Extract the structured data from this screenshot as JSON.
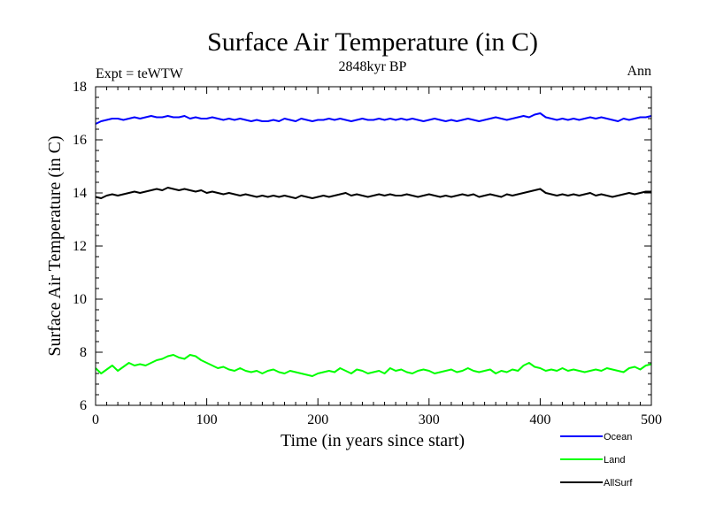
{
  "chart_data": {
    "type": "line",
    "title": "Surface Air Temperature (in C)",
    "subtitle": "2848kyr BP",
    "annotation_left": "Expt = teWTW",
    "annotation_right": "Ann",
    "xlabel": "Time (in years since start)",
    "ylabel": "Surface Air Temperature (in C)",
    "xlim": [
      0,
      500
    ],
    "ylim": [
      6,
      18
    ],
    "xticks": [
      0,
      100,
      200,
      300,
      400,
      500
    ],
    "xtick_labels": [
      "0",
      "100",
      "200",
      "300",
      "400",
      "500"
    ],
    "yticks": [
      6,
      8,
      10,
      12,
      14,
      16,
      18
    ],
    "ytick_labels": [
      "6",
      "8",
      "10",
      "12",
      "14",
      "16",
      "18"
    ],
    "legend_position": "bottom-right, below plot",
    "series": [
      {
        "name": "Ocean",
        "color": "#0000ff",
        "x_start": 0,
        "x_step": 5,
        "values": [
          16.6,
          16.7,
          16.75,
          16.8,
          16.8,
          16.75,
          16.8,
          16.85,
          16.8,
          16.85,
          16.9,
          16.85,
          16.85,
          16.9,
          16.85,
          16.85,
          16.9,
          16.8,
          16.85,
          16.8,
          16.8,
          16.85,
          16.8,
          16.75,
          16.8,
          16.75,
          16.8,
          16.75,
          16.7,
          16.75,
          16.7,
          16.7,
          16.75,
          16.7,
          16.8,
          16.75,
          16.7,
          16.8,
          16.75,
          16.7,
          16.75,
          16.75,
          16.8,
          16.75,
          16.8,
          16.75,
          16.7,
          16.75,
          16.8,
          16.75,
          16.75,
          16.8,
          16.75,
          16.8,
          16.75,
          16.8,
          16.75,
          16.8,
          16.75,
          16.7,
          16.75,
          16.8,
          16.75,
          16.7,
          16.75,
          16.7,
          16.75,
          16.8,
          16.75,
          16.7,
          16.75,
          16.8,
          16.85,
          16.8,
          16.75,
          16.8,
          16.85,
          16.9,
          16.85,
          16.95,
          17.0,
          16.85,
          16.8,
          16.75,
          16.8,
          16.75,
          16.8,
          16.75,
          16.8,
          16.85,
          16.8,
          16.85,
          16.8,
          16.75,
          16.7,
          16.8,
          16.75,
          16.8,
          16.85,
          16.85,
          16.9
        ]
      },
      {
        "name": "Land",
        "color": "#00ff00",
        "x_start": 0,
        "x_step": 5,
        "values": [
          7.4,
          7.2,
          7.35,
          7.5,
          7.3,
          7.45,
          7.6,
          7.5,
          7.55,
          7.5,
          7.6,
          7.7,
          7.75,
          7.85,
          7.9,
          7.8,
          7.75,
          7.9,
          7.85,
          7.7,
          7.6,
          7.5,
          7.4,
          7.45,
          7.35,
          7.3,
          7.4,
          7.3,
          7.25,
          7.3,
          7.2,
          7.3,
          7.35,
          7.25,
          7.2,
          7.3,
          7.25,
          7.2,
          7.15,
          7.1,
          7.2,
          7.25,
          7.3,
          7.25,
          7.4,
          7.3,
          7.2,
          7.35,
          7.3,
          7.2,
          7.25,
          7.3,
          7.2,
          7.4,
          7.3,
          7.35,
          7.25,
          7.2,
          7.3,
          7.35,
          7.3,
          7.2,
          7.25,
          7.3,
          7.35,
          7.25,
          7.3,
          7.4,
          7.3,
          7.25,
          7.3,
          7.35,
          7.2,
          7.3,
          7.25,
          7.35,
          7.3,
          7.5,
          7.6,
          7.45,
          7.4,
          7.3,
          7.35,
          7.3,
          7.4,
          7.3,
          7.35,
          7.3,
          7.25,
          7.3,
          7.35,
          7.3,
          7.4,
          7.35,
          7.3,
          7.25,
          7.4,
          7.45,
          7.35,
          7.5,
          7.55
        ]
      },
      {
        "name": "AllSurf",
        "color": "#000000",
        "x_start": 0,
        "x_step": 5,
        "values": [
          13.85,
          13.8,
          13.9,
          13.95,
          13.9,
          13.95,
          14.0,
          14.05,
          14.0,
          14.05,
          14.1,
          14.15,
          14.1,
          14.2,
          14.15,
          14.1,
          14.15,
          14.1,
          14.05,
          14.1,
          14.0,
          14.05,
          14.0,
          13.95,
          14.0,
          13.95,
          13.9,
          13.95,
          13.9,
          13.85,
          13.9,
          13.85,
          13.9,
          13.85,
          13.9,
          13.85,
          13.8,
          13.9,
          13.85,
          13.8,
          13.85,
          13.9,
          13.85,
          13.9,
          13.95,
          14.0,
          13.9,
          13.95,
          13.9,
          13.85,
          13.9,
          13.95,
          13.9,
          13.95,
          13.9,
          13.9,
          13.95,
          13.9,
          13.85,
          13.9,
          13.95,
          13.9,
          13.85,
          13.9,
          13.85,
          13.9,
          13.95,
          13.9,
          13.95,
          13.85,
          13.9,
          13.95,
          13.9,
          13.85,
          13.95,
          13.9,
          13.95,
          14.0,
          14.05,
          14.1,
          14.15,
          14.0,
          13.95,
          13.9,
          13.95,
          13.9,
          13.95,
          13.9,
          13.95,
          14.0,
          13.9,
          13.95,
          13.9,
          13.85,
          13.9,
          13.95,
          14.0,
          13.95,
          14.0,
          14.05,
          14.05
        ]
      }
    ]
  }
}
